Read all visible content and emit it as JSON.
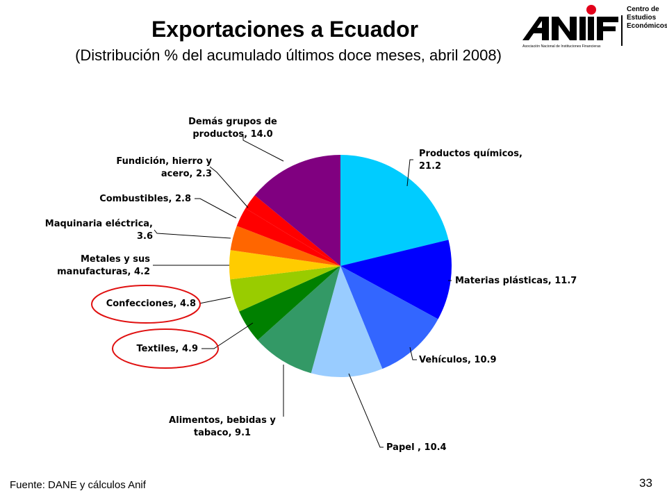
{
  "header": {
    "title": "Exportaciones a Ecuador",
    "subtitle": "(Distribución % del acumulado últimos doce meses, abril 2008)"
  },
  "logo": {
    "wordmark": "ANIF",
    "lines": [
      "Centro de",
      "Estudios",
      "Económicos"
    ],
    "tagline": "Asociación Nacional de Instituciones Financieras",
    "dot_color": "#e2001a"
  },
  "footer": {
    "source": "Fuente: DANE y cálculos Anif",
    "page_number": "33"
  },
  "chart_data": {
    "type": "pie",
    "title": "",
    "start": "12 o'clock, clockwise",
    "slices": [
      {
        "label": [
          "Productos químicos,",
          "21.2"
        ],
        "value": 21.2,
        "color": "#00ccff",
        "highlight": false
      },
      {
        "label": [
          "Materias plásticas, 11.7"
        ],
        "value": 11.7,
        "color": "#0000ff",
        "highlight": false
      },
      {
        "label": [
          "Vehículos, 10.9"
        ],
        "value": 10.9,
        "color": "#3366ff",
        "highlight": false
      },
      {
        "label": [
          "Papel , 10.4"
        ],
        "value": 10.4,
        "color": "#99ccff",
        "highlight": false
      },
      {
        "label": [
          "Alimentos, bebidas y",
          "tabaco, 9.1"
        ],
        "value": 9.1,
        "color": "#339966",
        "highlight": false
      },
      {
        "label": [
          "Textiles, 4.9"
        ],
        "value": 4.9,
        "color": "#008000",
        "highlight": true
      },
      {
        "label": [
          "Confecciones, 4.8"
        ],
        "value": 4.8,
        "color": "#99cc00",
        "highlight": true
      },
      {
        "label": [
          "Metales y sus",
          "manufacturas, 4.2"
        ],
        "value": 4.2,
        "color": "#ffcc00",
        "highlight": false
      },
      {
        "label": [
          "Maquinaria eléctrica,",
          "3.6"
        ],
        "value": 3.6,
        "color": "#ff6600",
        "highlight": false
      },
      {
        "label": [
          "Combustibles, 2.8"
        ],
        "value": 2.8,
        "color": "#ff0000",
        "highlight": false
      },
      {
        "label": [
          "Fundición, hierro y",
          "acero, 2.3"
        ],
        "value": 2.3,
        "color": "#ff0000",
        "highlight": false
      },
      {
        "label": [
          "Demás grupos de",
          "productos, 14.0"
        ],
        "value": 14.0,
        "color": "#800080",
        "highlight": false
      }
    ],
    "highlight_color": "#e01010"
  }
}
